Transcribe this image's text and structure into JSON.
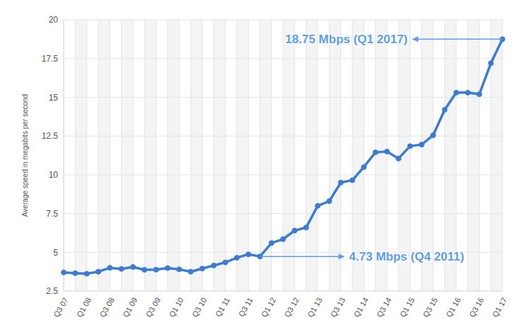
{
  "chart_data": {
    "type": "line",
    "y_label": "Average speed in megabits per second",
    "categories": [
      "Q3 07",
      null,
      "Q1 08",
      null,
      "Q3 08",
      null,
      "Q1 09",
      null,
      "Q3 09",
      null,
      "Q1 10",
      null,
      "Q3 10",
      null,
      "Q1 11",
      null,
      "Q3 11",
      null,
      "Q1 12",
      null,
      "Q3 12",
      null,
      "Q1 13",
      null,
      "Q3 13",
      null,
      "Q1 14",
      null,
      "Q3 14",
      null,
      "Q1 15",
      null,
      "Q3 15",
      null,
      "Q1 16",
      null,
      "Q3 16",
      null,
      "Q1 17"
    ],
    "values": [
      3.7,
      3.65,
      3.62,
      3.75,
      4.0,
      3.93,
      4.05,
      3.87,
      3.88,
      3.98,
      3.9,
      3.75,
      3.95,
      4.15,
      4.35,
      4.65,
      4.87,
      4.73,
      5.6,
      5.85,
      6.4,
      6.6,
      8.0,
      8.3,
      9.5,
      9.65,
      10.5,
      11.45,
      11.5,
      11.05,
      11.85,
      11.95,
      12.55,
      14.2,
      15.3,
      15.3,
      15.2,
      17.2,
      18.75
    ],
    "color": "#3a7bd5",
    "marker": "circle",
    "ylim": [
      2.5,
      20
    ],
    "yticks": [
      2.5,
      5,
      7.5,
      10,
      12.5,
      15,
      17.5,
      20
    ],
    "grid": true,
    "annotations": [
      {
        "text": "18.75 Mbps (Q1 2017)",
        "value": 18.75
      },
      {
        "text": "4.73 Mbps (Q4 2011)",
        "value": 4.73
      }
    ]
  }
}
